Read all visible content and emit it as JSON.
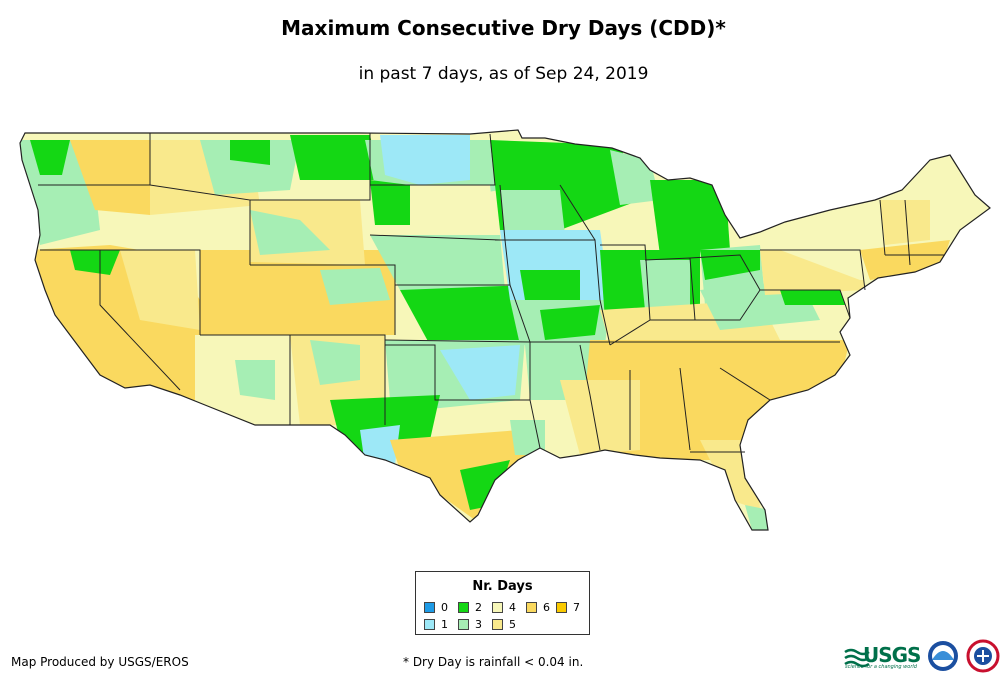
{
  "header": {
    "title": "Maximum Consecutive Dry Days (CDD)*",
    "subtitle": "in past 7 days, as of Sep 24, 2019"
  },
  "legend": {
    "title": "Nr. Days",
    "items": [
      {
        "label": "0",
        "color": "#1E9BE6"
      },
      {
        "label": "1",
        "color": "#9DE8F7"
      },
      {
        "label": "2",
        "color": "#14D714"
      },
      {
        "label": "3",
        "color": "#A6EEB4"
      },
      {
        "label": "4",
        "color": "#F7F7B9"
      },
      {
        "label": "5",
        "color": "#F9E98C"
      },
      {
        "label": "6",
        "color": "#FAD95F"
      },
      {
        "label": "7",
        "color": "#FACA00"
      }
    ]
  },
  "footer": {
    "credit": "Map Produced by USGS/EROS",
    "footnote": "* Dry Day is rainfall < 0.04 in.",
    "logos": [
      "usgs-logo",
      "noaa-logo",
      "nws-logo"
    ],
    "usgs_wordmark": "USGS",
    "usgs_tagline": "science for a changing world"
  },
  "colors": {
    "state_border": "#222222",
    "background": "#ffffff"
  }
}
